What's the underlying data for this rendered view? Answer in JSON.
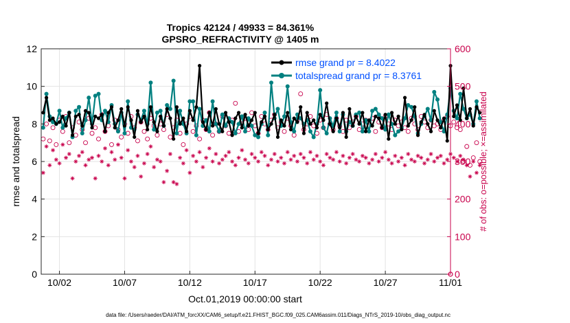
{
  "chart_data": {
    "type": "line",
    "title_line1": "Tropics 42124 / 49933 = 84.361%",
    "title_line2": "GPSRO_REFRACTIVITY @ 1405 m",
    "xlabel": "Oct.01,2019 00:00:00 start",
    "ylabel": "rmse and totalspread",
    "y2label": "# of obs: o=possible; ×=assimilated",
    "footer": "data file: /Users/raeder/DAI/ATM_forcXX/CAM6_setup/f.e21.FHIST_BGC.f09_025.CAM6assim.011/Diags_NTrS_2019-10/obs_diag_output.nc",
    "xlim": [
      0.6,
      32
    ],
    "ylim": [
      0,
      12
    ],
    "y2lim": [
      0,
      600
    ],
    "xticks": [
      {
        "v": 2,
        "label": "10/02"
      },
      {
        "v": 7,
        "label": "10/07"
      },
      {
        "v": 12,
        "label": "10/12"
      },
      {
        "v": 17,
        "label": "10/17"
      },
      {
        "v": 22,
        "label": "10/22"
      },
      {
        "v": 27,
        "label": "10/27"
      },
      {
        "v": 32,
        "label": "11/01"
      }
    ],
    "yticks": [
      "0",
      "2",
      "4",
      "6",
      "8",
      "10",
      "12"
    ],
    "y2ticks": [
      "0",
      "100",
      "200",
      "300",
      "400",
      "500",
      "600"
    ],
    "x_start": 0.75,
    "x_step": 0.25,
    "legend": [
      {
        "label": "rmse grand pr = 8.4022",
        "color": "#000000"
      },
      {
        "label": "totalspread grand pr = 8.3761",
        "color": "#008080"
      }
    ],
    "series": [
      {
        "name": "rmse",
        "color": "#000000",
        "values": [
          8.6,
          9.4,
          8.2,
          8.3,
          8.0,
          8.1,
          8.4,
          7.9,
          8.6,
          7.4,
          8.4,
          8.5,
          7.9,
          8.7,
          8.6,
          7.8,
          8.4,
          8.3,
          8.5,
          7.6,
          8.6,
          8.9,
          7.8,
          8.2,
          8.8,
          7.9,
          8.9,
          8.2,
          7.3,
          8.7,
          8.1,
          8.4,
          7.7,
          8.9,
          8.1,
          7.6,
          8.4,
          7.9,
          8.8,
          8.3,
          7.2,
          8.9,
          8.0,
          8.3,
          7.6,
          8.7,
          8.2,
          8.9,
          11.1,
          8.1,
          7.7,
          8.6,
          7.9,
          8.8,
          8.0,
          7.6,
          8.6,
          8.1,
          7.4,
          8.3,
          8.6,
          7.8,
          8.5,
          7.9,
          8.2,
          8.6,
          7.5,
          8.1,
          8.4,
          7.7,
          8.0,
          8.5,
          7.3,
          8.2,
          7.9,
          8.6,
          7.7,
          8.3,
          8.1,
          8.9,
          7.5,
          8.6,
          8.0,
          8.2,
          7.8,
          8.5,
          8.2,
          9.1,
          8.0,
          7.6,
          8.3,
          7.8,
          8.6,
          7.3,
          8.8,
          7.9,
          8.4,
          8.0,
          8.6,
          7.6,
          8.2,
          7.9,
          8.4,
          8.3,
          7.8,
          8.5,
          7.2,
          8.6,
          8.0,
          8.4,
          7.7,
          9.4,
          7.9,
          8.2,
          8.9,
          7.4,
          8.1,
          8.5,
          8.0,
          7.6,
          8.7,
          8.2,
          7.8,
          8.3,
          7.1,
          11.1,
          8.4,
          9.0,
          8.2,
          9.9,
          8.3,
          8.8,
          7.9,
          8.9,
          8.6
        ]
      },
      {
        "name": "totalspread",
        "color": "#008080",
        "values": [
          7.8,
          9.6,
          8.4,
          8.1,
          8.0,
          8.7,
          7.8,
          8.3,
          8.6,
          7.3,
          8.7,
          8.9,
          7.5,
          8.2,
          9.4,
          8.0,
          9.5,
          9.6,
          8.2,
          8.7,
          8.1,
          9.0,
          8.0,
          7.6,
          8.6,
          7.5,
          9.2,
          7.8,
          7.7,
          8.5,
          8.2,
          8.7,
          8.0,
          10.2,
          7.7,
          8.6,
          8.7,
          7.9,
          9.0,
          8.8,
          10.3,
          7.5,
          8.7,
          8.0,
          7.5,
          9.2,
          9.2,
          7.4,
          8.8,
          7.9,
          8.2,
          7.6,
          9.2,
          8.0,
          7.6,
          8.5,
          7.9,
          8.3,
          8.1,
          7.5,
          8.0,
          8.4,
          7.6,
          8.3,
          7.9,
          7.4,
          7.3,
          8.0,
          8.6,
          7.4,
          10.2,
          8.3,
          8.8,
          7.9,
          8.4,
          10.0,
          8.1,
          7.6,
          8.5,
          8.3,
          8.0,
          8.2,
          7.6,
          7.3,
          8.0,
          9.8,
          7.8,
          7.5,
          8.3,
          7.9,
          8.6,
          7.6,
          8.5,
          7.6,
          8.1,
          7.9,
          8.5,
          8.6,
          7.6,
          8.2,
          7.6,
          8.7,
          8.8,
          8.5,
          8.3,
          7.7,
          8.5,
          8.0,
          7.4,
          7.6,
          7.8,
          8.3,
          9.0,
          8.9,
          8.4,
          7.5,
          8.0,
          8.4,
          8.8,
          8.2,
          9.7,
          9.3,
          8.1,
          7.6,
          8.5,
          9.9,
          8.7,
          8.3,
          9.6,
          8.8,
          8.3,
          8.5,
          8.0,
          9.2,
          8.3
        ]
      },
      {
        "name": "possible",
        "color": "#c8004b",
        "axis": "right",
        "marker": "circle",
        "values": [
          360,
          400,
          355,
          390,
          345,
          410,
          380,
          420,
          350,
          390,
          370,
          405,
          385,
          350,
          415,
          375,
          390,
          360,
          425,
          380,
          395,
          345,
          410,
          385,
          365,
          400,
          375,
          420,
          390,
          355,
          405,
          380,
          360,
          415,
          395,
          370,
          400,
          385,
          425,
          365,
          390,
          410,
          375,
          345,
          400,
          420,
          380,
          395,
          360,
          410,
          385,
          430,
          370,
          400,
          380,
          420,
          395,
          375,
          410,
          455,
          380,
          400,
          415,
          385,
          430,
          395,
          375,
          420,
          400,
          385,
          410,
          425,
          390,
          405,
          380,
          415,
          395,
          370,
          410,
          480,
          385,
          400,
          420,
          395,
          375,
          410,
          390,
          425,
          400,
          385,
          415,
          395,
          380,
          410,
          390,
          405,
          420,
          385,
          400,
          410,
          395,
          415,
          380,
          405,
          390,
          420,
          400,
          385,
          410,
          395,
          405,
          390,
          380,
          415,
          400,
          385,
          420,
          405,
          390,
          410,
          395,
          400,
          385,
          410,
          420,
          395,
          405,
          390,
          385,
          300,
          340,
          290,
          310,
          350,
          300
        ]
      },
      {
        "name": "assimilated",
        "color": "#c8004b",
        "axis": "right",
        "marker": "asterisk",
        "values": [
          270,
          340,
          290,
          330,
          305,
          295,
          345,
          310,
          320,
          255,
          300,
          315,
          325,
          290,
          305,
          310,
          255,
          315,
          300,
          335,
          290,
          325,
          305,
          345,
          310,
          255,
          330,
          300,
          285,
          315,
          260,
          295,
          320,
          340,
          285,
          305,
          300,
          245,
          275,
          320,
          245,
          240,
          310,
          295,
          330,
          270,
          315,
          300,
          325,
          285,
          310,
          335,
          300,
          320,
          295,
          305,
          315,
          325,
          300,
          290,
          310,
          330,
          305,
          295,
          320,
          310,
          300,
          325,
          315,
          290,
          305,
          320,
          300,
          310,
          295,
          325,
          305,
          315,
          300,
          320,
          310,
          295,
          325,
          305,
          315,
          300,
          290,
          320,
          310,
          305,
          325,
          300,
          315,
          295,
          310,
          320,
          305,
          300,
          315,
          310,
          295,
          305,
          320,
          300,
          310,
          325,
          305,
          295,
          315,
          300,
          310,
          290,
          320,
          305,
          300,
          315,
          310,
          295,
          305,
          320,
          300,
          310,
          315,
          295,
          305,
          320,
          310,
          300,
          315,
          305,
          290,
          260,
          300,
          270,
          290
        ]
      }
    ]
  }
}
